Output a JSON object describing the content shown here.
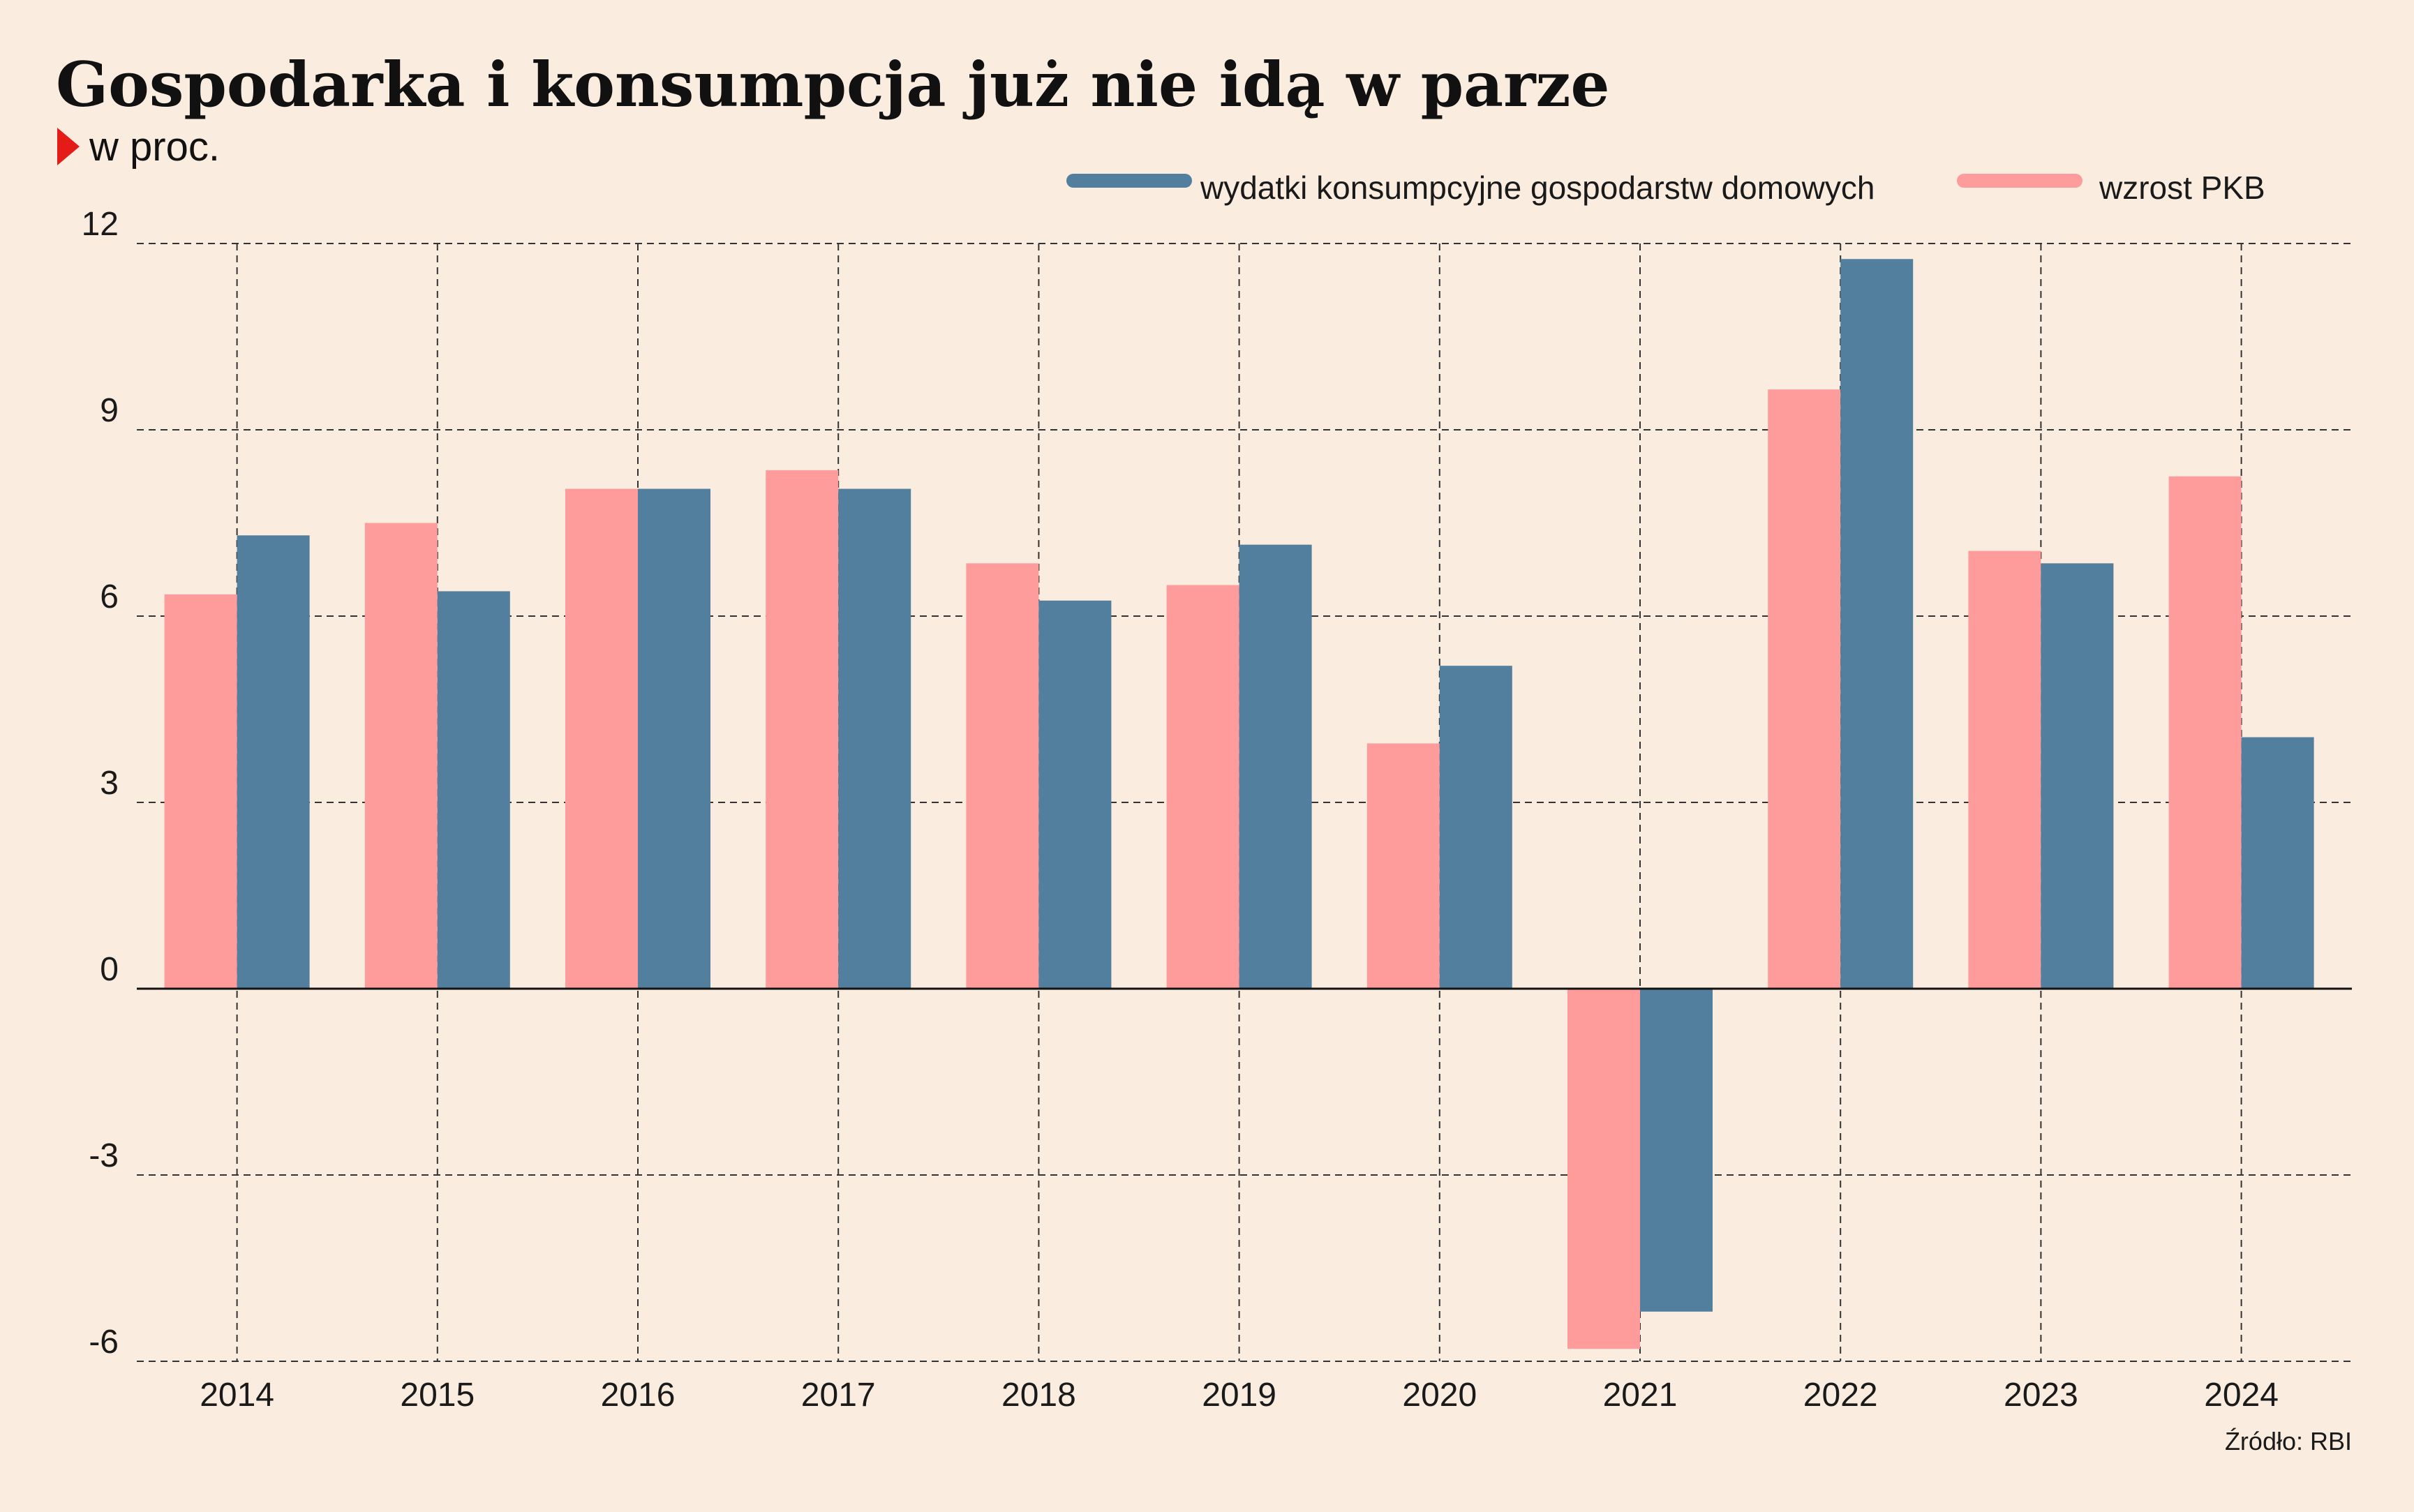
{
  "header": {
    "title": "Gospodarka i konsumpcja już nie idą w parze",
    "subtitle": "w proc."
  },
  "colors": {
    "background": "#faede0",
    "consumption": "#527f9e",
    "gdp": "#fe9c9b",
    "marker": "#e41b17"
  },
  "source": "Źródło: RBI",
  "chart_data": {
    "type": "bar",
    "title": "Gospodarka i konsumpcja już nie idą w parze",
    "subtitle": "w proc.",
    "xlabel": "",
    "ylabel": "",
    "categories": [
      "2014",
      "2015",
      "2016",
      "2017",
      "2018",
      "2019",
      "2020",
      "2021",
      "2022",
      "2023",
      "2024"
    ],
    "series": [
      {
        "name": "wzrost PKB",
        "color": "#fe9c9b",
        "values": [
          6.35,
          7.5,
          8.05,
          8.35,
          6.85,
          6.5,
          3.95,
          -5.8,
          9.65,
          7.05,
          8.25
        ]
      },
      {
        "name": "wydatki konsumpcyjne gospodarstw domowych",
        "color": "#527f9e",
        "values": [
          7.3,
          6.4,
          8.05,
          8.05,
          6.25,
          7.15,
          5.2,
          -5.2,
          11.75,
          6.85,
          4.05
        ]
      }
    ],
    "legend_order": [
      "wydatki konsumpcyjne gospodarstw domowych",
      "wzrost PKB"
    ],
    "yticks": [
      12,
      9,
      6,
      3,
      0,
      -3,
      -6
    ],
    "ylim": [
      -6,
      12
    ],
    "grid": true,
    "legend_position": "top-right"
  }
}
